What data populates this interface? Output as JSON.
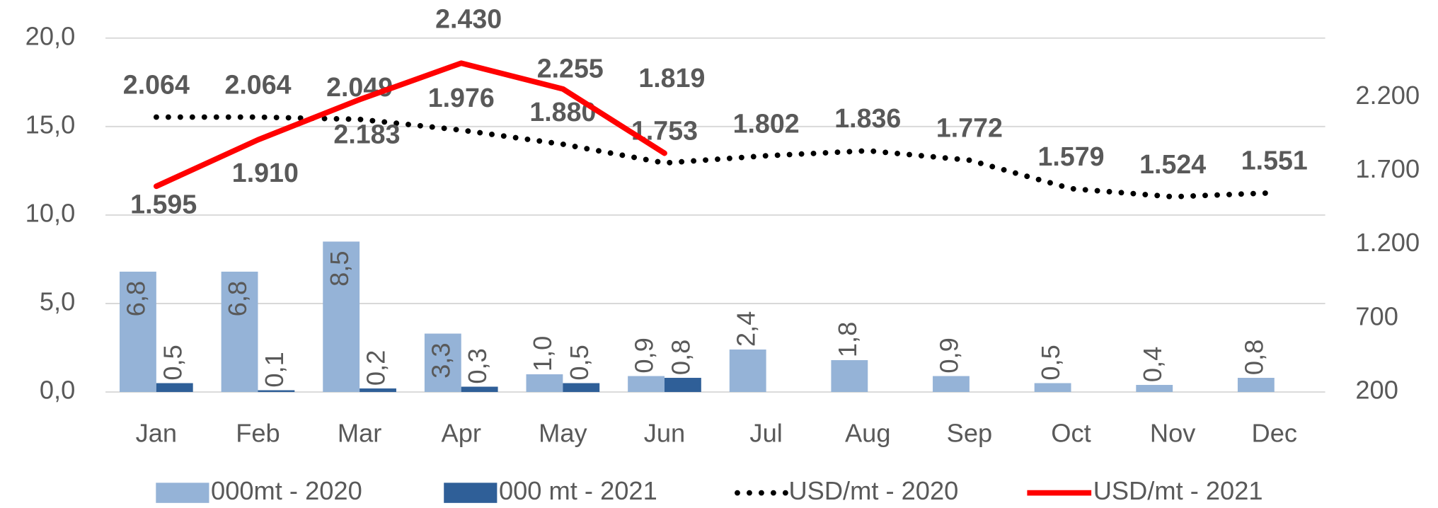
{
  "chart_data": {
    "type": "bar-line",
    "categories": [
      "Jan",
      "Feb",
      "Mar",
      "Apr",
      "May",
      "Jun",
      "Jul",
      "Aug",
      "Sep",
      "Oct",
      "Nov",
      "Dec"
    ],
    "ylim": [
      0,
      20
    ],
    "yticks": [
      {
        "value": 0,
        "label": "0,0"
      },
      {
        "value": 5,
        "label": "5,0"
      },
      {
        "value": 10,
        "label": "10,0"
      },
      {
        "value": 15,
        "label": "15,0"
      },
      {
        "value": 20,
        "label": "20,0"
      }
    ],
    "y2lim": [
      200,
      2600
    ],
    "y2ticks": [
      200,
      700,
      {
        "value": 1200,
        "label": "1.200"
      },
      {
        "value": 1700,
        "label": "1.700"
      },
      {
        "value": 2200,
        "label": "2.200"
      }
    ],
    "grid": true,
    "legend": "bottom",
    "series": [
      {
        "name": "000mt - 2020",
        "kind": "bar",
        "color": "#95b3d7",
        "values": [
          6.8,
          6.8,
          8.5,
          3.3,
          1.0,
          0.9,
          2.4,
          1.8,
          0.9,
          0.5,
          0.4,
          0.8
        ],
        "value_labels": [
          "6,8",
          "6,8",
          "8,5",
          "3,3",
          "1,0",
          "0,9",
          "2,4",
          "1,8",
          "0,9",
          "0,5",
          "0,4",
          "0,8"
        ]
      },
      {
        "name": "000 mt - 2021",
        "kind": "bar",
        "color": "#2f5f98",
        "values": [
          0.5,
          0.1,
          0.2,
          0.3,
          0.5,
          0.8,
          null,
          null,
          null,
          null,
          null,
          null
        ],
        "value_labels": [
          "0,5",
          "0,1",
          "0,2",
          "0,3",
          "0,5",
          "0,8",
          null,
          null,
          null,
          null,
          null,
          null
        ]
      },
      {
        "name": "USD/mt - 2020",
        "kind": "line",
        "style": "dotted",
        "axis": "y2",
        "color": "#000000",
        "values": [
          2064,
          2064,
          2049,
          1976,
          1880,
          1753,
          1802,
          1836,
          1772,
          1579,
          1524,
          1551
        ],
        "value_labels": [
          "2.064",
          "2.064",
          "2.049",
          "1.976",
          "1.880",
          "1.753",
          "1.802",
          "1.836",
          "1.772",
          "1.579",
          "1.524",
          "1.551"
        ]
      },
      {
        "name": "USD/mt - 2021",
        "kind": "line",
        "style": "solid",
        "axis": "y2",
        "color": "#ff0000",
        "values": [
          1595,
          1910,
          2183,
          2430,
          2255,
          1819,
          null,
          null,
          null,
          null,
          null,
          null
        ],
        "value_labels": [
          "1.595",
          "1.910",
          "2.183",
          "2.430",
          "2.255",
          "1.819",
          null,
          null,
          null,
          null,
          null,
          null
        ]
      }
    ]
  }
}
